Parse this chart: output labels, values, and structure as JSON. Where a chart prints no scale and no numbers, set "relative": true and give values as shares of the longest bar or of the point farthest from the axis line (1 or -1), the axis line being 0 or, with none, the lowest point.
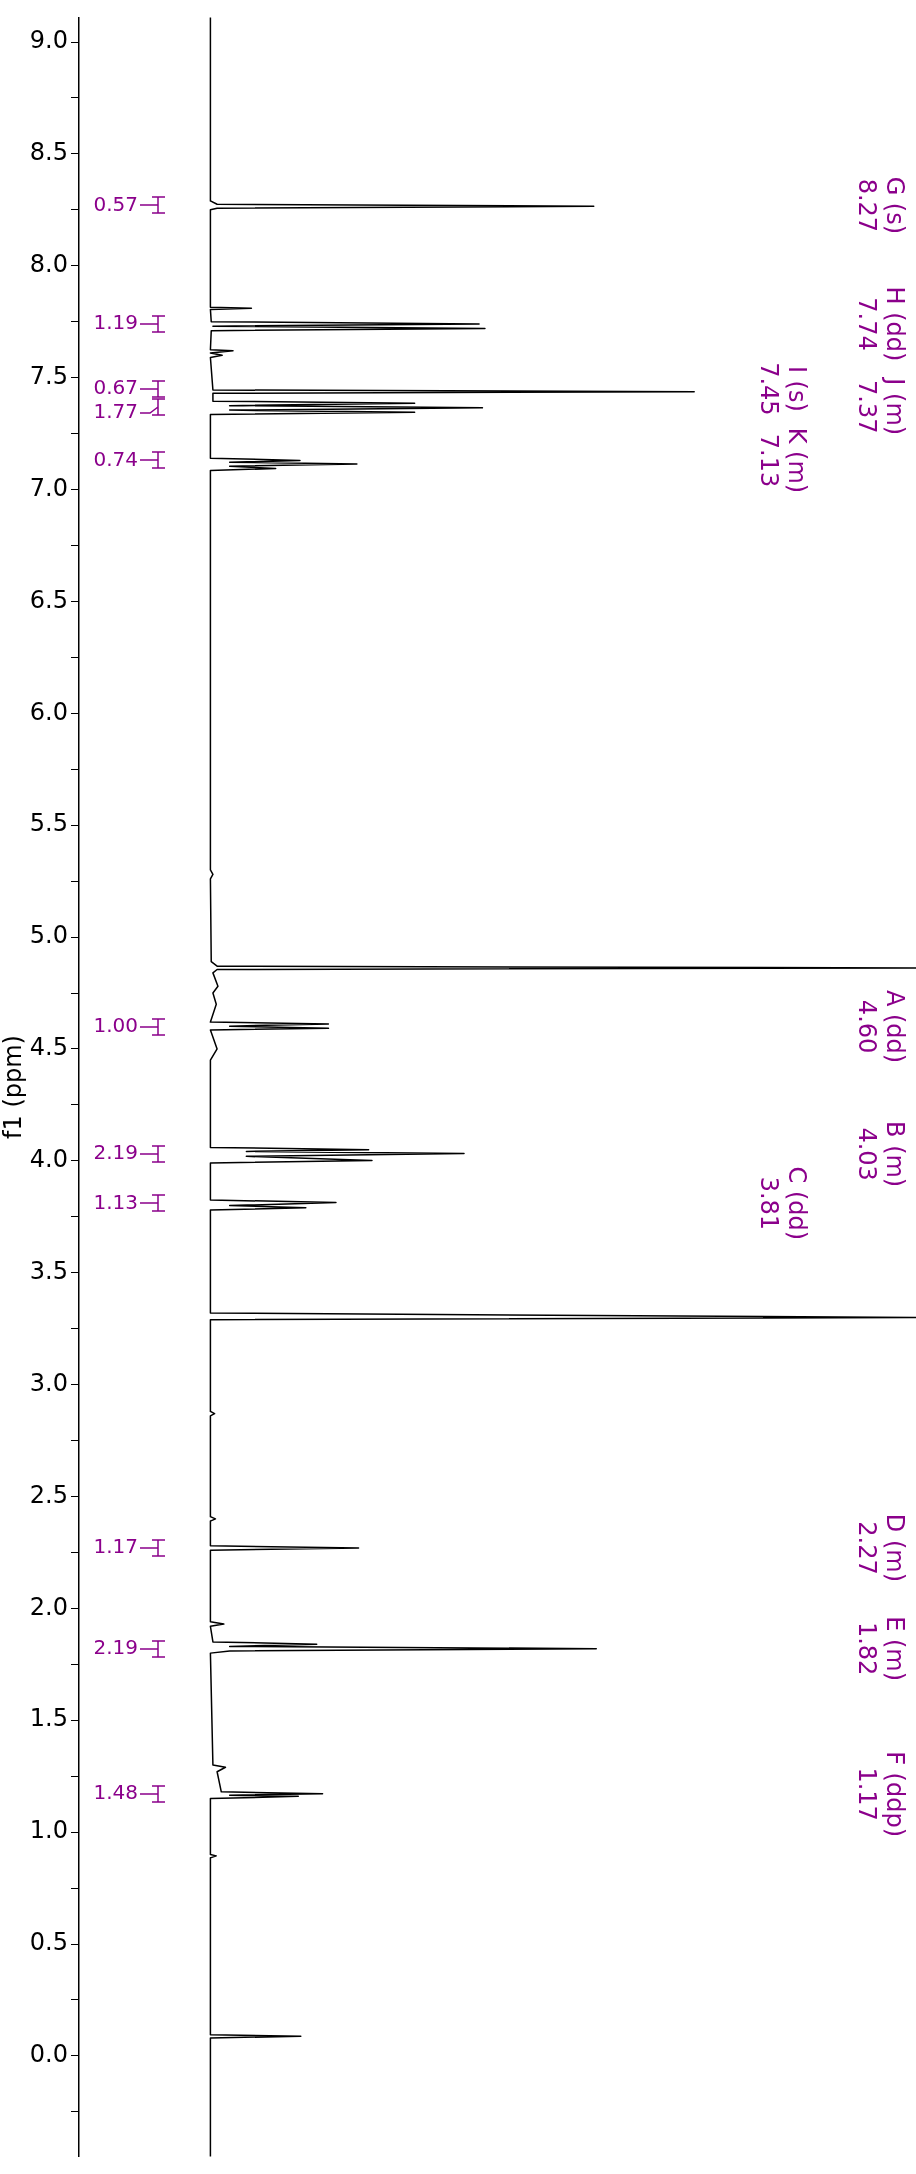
{
  "chart_data": {
    "type": "line",
    "relative": true,
    "orientation": "horizontal",
    "ylabel": "f1 (ppm)",
    "ylim": [
      -0.45,
      9.11
    ],
    "yticks": [
      {
        "value": 9,
        "label": "9.0"
      },
      {
        "value": 8.75,
        "label": null
      },
      {
        "value": 8.5,
        "label": "8.5"
      },
      {
        "value": 8.25,
        "label": null
      },
      {
        "value": 8,
        "label": "8.0"
      },
      {
        "value": 7.75,
        "label": null
      },
      {
        "value": 7.5,
        "label": "7.5"
      },
      {
        "value": 7.25,
        "label": null
      },
      {
        "value": 7,
        "label": "7.0"
      },
      {
        "value": 6.75,
        "label": null
      },
      {
        "value": 6.5,
        "label": "6.5"
      },
      {
        "value": 6.25,
        "label": null
      },
      {
        "value": 6,
        "label": "6.0"
      },
      {
        "value": 5.75,
        "label": null
      },
      {
        "value": 5.5,
        "label": "5.5"
      },
      {
        "value": 5.25,
        "label": null
      },
      {
        "value": 5,
        "label": "5.0"
      },
      {
        "value": 4.75,
        "label": null
      },
      {
        "value": 4.5,
        "label": "4.5"
      },
      {
        "value": 4.25,
        "label": null
      },
      {
        "value": 4,
        "label": "4.0"
      },
      {
        "value": 3.75,
        "label": null
      },
      {
        "value": 3.5,
        "label": "3.5"
      },
      {
        "value": 3.25,
        "label": null
      },
      {
        "value": 3,
        "label": "3.0"
      },
      {
        "value": 2.75,
        "label": null
      },
      {
        "value": 2.5,
        "label": "2.5"
      },
      {
        "value": 2.25,
        "label": null
      },
      {
        "value": 2,
        "label": "2.0"
      },
      {
        "value": 1.75,
        "label": null
      },
      {
        "value": 1.5,
        "label": "1.5"
      },
      {
        "value": 1.25,
        "label": null
      },
      {
        "value": 1,
        "label": "1.0"
      },
      {
        "value": 0.75,
        "label": null
      },
      {
        "value": 0.5,
        "label": "0.5"
      },
      {
        "value": 0.25,
        "label": null
      },
      {
        "value": 0,
        "label": "0.0"
      },
      {
        "value": -0.25,
        "label": null
      }
    ],
    "x": [
      9.11,
      8.29,
      8.275,
      8.266,
      8.257,
      8.25,
      7.815,
      7.81,
      7.805,
      7.75,
      7.74,
      7.73,
      7.72,
      7.71,
      7.625,
      7.62,
      7.61,
      7.6,
      7.59,
      7.445,
      7.437,
      7.43,
      7.395,
      7.386,
      7.375,
      7.365,
      7.355,
      7.345,
      7.335,
      7.14,
      7.13,
      7.122,
      7.114,
      7.104,
      7.094,
      7.085,
      5.3,
      5.28,
      5.26,
      4.89,
      4.87,
      4.862,
      4.855,
      4.84,
      4.78,
      4.75,
      4.7,
      4.62,
      4.612,
      4.602,
      4.592,
      4.585,
      4.5,
      4.45,
      4.06,
      4.05,
      4.042,
      4.033,
      4.02,
      4.002,
      3.99,
      3.825,
      3.814,
      3.8,
      3.79,
      3.78,
      3.32,
      3.3,
      3.29,
      2.88,
      2.87,
      2.86,
      2.41,
      2.4,
      2.39,
      2.28,
      2.27,
      2.26,
      1.94,
      1.93,
      1.92,
      1.85,
      1.84,
      1.83,
      1.82,
      1.81,
      1.8,
      1.3,
      1.29,
      1.27,
      1.18,
      1.172,
      1.165,
      1.16,
      1.15,
      0.9,
      0.894,
      0.885,
      0.095,
      0.088,
      0.08,
      -0.45
    ],
    "values": [
      0.157,
      0.157,
      0.165,
      0.615,
      0.165,
      0.157,
      0.157,
      0.206,
      0.157,
      0.158,
      0.478,
      0.16,
      0.485,
      0.158,
      0.157,
      0.184,
      0.157,
      0.171,
      0.157,
      0.16,
      0.735,
      0.16,
      0.16,
      0.401,
      0.18,
      0.482,
      0.18,
      0.401,
      0.157,
      0.157,
      0.264,
      0.18,
      0.332,
      0.18,
      0.235,
      0.157,
      0.157,
      0.16,
      0.157,
      0.158,
      0.165,
      1,
      0.165,
      0.16,
      0.166,
      0.16,
      0.164,
      0.157,
      0.298,
      0.18,
      0.298,
      0.157,
      0.165,
      0.157,
      0.157,
      0.346,
      0.2,
      0.46,
      0.2,
      0.35,
      0.157,
      0.157,
      0.307,
      0.18,
      0.271,
      0.157,
      0.157,
      1,
      0.157,
      0.157,
      0.162,
      0.157,
      0.157,
      0.163,
      0.157,
      0.157,
      0.334,
      0.157,
      0.157,
      0.173,
      0.157,
      0.16,
      0.284,
      0.18,
      0.618,
      0.18,
      0.157,
      0.16,
      0.175,
      0.165,
      0.17,
      0.291,
      0.18,
      0.262,
      0.157,
      0.157,
      0.164,
      0.157,
      0.157,
      0.265,
      0.157,
      0.157
    ],
    "color": "#000000",
    "annotations": [
      "0.57",
      "1.19",
      "0.67",
      "1.77",
      "0.74",
      "1.00",
      "2.19",
      "1.13",
      "1.17",
      "2.19",
      "1.48",
      "G (s)\n8.27",
      "H (dd)\n7.74",
      "I (s)\n7.45",
      "J (m)\n7.37",
      "K (m)\n7.13",
      "A (dd)\n4.60",
      "B (m)\n4.03",
      "C (dd)\n3.81",
      "D (m)\n2.27",
      "E (m)\n1.82",
      "F (ddp)\n1.17"
    ]
  }
}
